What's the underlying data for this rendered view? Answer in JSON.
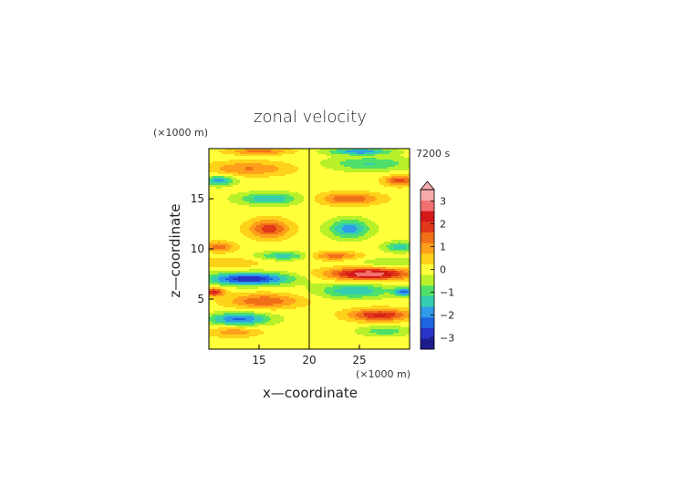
{
  "chart_data": {
    "type": "heatmap",
    "title": "zonal velocity",
    "time_label": "7200 s",
    "xlabel": "x—coordinate",
    "ylabel": "z—coordinate",
    "x_unit": "(×1000 m)",
    "z_unit": "(×1000 m)",
    "xlim": [
      10,
      30
    ],
    "zlim": [
      0,
      20
    ],
    "x_ticks": [
      "15",
      "20",
      "25"
    ],
    "z_ticks": [
      "5",
      "10",
      "15"
    ],
    "colorbar_ticks": [
      "3",
      "2",
      "1",
      "0",
      "−1",
      "−2",
      "−3"
    ],
    "colorbar_range": [
      -3.5,
      3.5
    ],
    "colorbar_extend": "max",
    "colors": [
      "#1c1c8a",
      "#2834c8",
      "#1f63e0",
      "#2f9ae8",
      "#35cdb2",
      "#4fe06a",
      "#b8f02a",
      "#ffff3a",
      "#ffd21a",
      "#ffa01a",
      "#f07018",
      "#e03818",
      "#d41818",
      "#f07070",
      "#f6aaaa"
    ],
    "features": [
      {
        "x": 14.0,
        "z": 7.0,
        "v": -3.0,
        "sx": 4.0,
        "sz": 0.6
      },
      {
        "x": 16.0,
        "z": 12.0,
        "v": 1.9,
        "sx": 2.0,
        "sz": 0.9
      },
      {
        "x": 16.0,
        "z": 15.0,
        "v": -1.6,
        "sx": 3.0,
        "sz": 0.6
      },
      {
        "x": 14.0,
        "z": 18.0,
        "v": 1.2,
        "sx": 4.0,
        "sz": 0.7
      },
      {
        "x": 15.5,
        "z": 4.8,
        "v": 1.6,
        "sx": 3.5,
        "sz": 0.7
      },
      {
        "x": 13.0,
        "z": 3.0,
        "v": -2.2,
        "sx": 3.0,
        "sz": 0.6
      },
      {
        "x": 12.5,
        "z": 1.7,
        "v": 1.0,
        "sx": 2.5,
        "sz": 0.5
      },
      {
        "x": 17.5,
        "z": 9.3,
        "v": -1.4,
        "sx": 2.5,
        "sz": 0.4
      },
      {
        "x": 11.0,
        "z": 10.2,
        "v": 1.5,
        "sx": 1.5,
        "sz": 0.5
      },
      {
        "x": 11.0,
        "z": 16.8,
        "v": -1.8,
        "sx": 1.5,
        "sz": 0.5
      },
      {
        "x": 10.5,
        "z": 5.7,
        "v": 2.2,
        "sx": 1.0,
        "sz": 0.4
      },
      {
        "x": 12.0,
        "z": 8.6,
        "v": 0.7,
        "sx": 3.0,
        "sz": 0.5
      },
      {
        "x": 26.0,
        "z": 7.5,
        "v": 3.0,
        "sx": 4.0,
        "sz": 0.6
      },
      {
        "x": 24.0,
        "z": 12.0,
        "v": -1.9,
        "sx": 2.0,
        "sz": 0.9
      },
      {
        "x": 24.0,
        "z": 15.0,
        "v": 1.6,
        "sx": 3.0,
        "sz": 0.6
      },
      {
        "x": 26.0,
        "z": 18.5,
        "v": -1.2,
        "sx": 4.0,
        "sz": 0.7
      },
      {
        "x": 24.5,
        "z": 5.8,
        "v": -1.6,
        "sx": 3.5,
        "sz": 0.7
      },
      {
        "x": 27.0,
        "z": 3.4,
        "v": 2.2,
        "sx": 3.0,
        "sz": 0.6
      },
      {
        "x": 27.5,
        "z": 1.8,
        "v": -1.0,
        "sx": 2.5,
        "sz": 0.5
      },
      {
        "x": 22.5,
        "z": 9.3,
        "v": 1.4,
        "sx": 2.5,
        "sz": 0.4
      },
      {
        "x": 29.0,
        "z": 10.2,
        "v": -1.5,
        "sx": 1.5,
        "sz": 0.5
      },
      {
        "x": 29.0,
        "z": 16.8,
        "v": 1.8,
        "sx": 1.5,
        "sz": 0.5
      },
      {
        "x": 29.5,
        "z": 5.7,
        "v": -2.2,
        "sx": 1.0,
        "sz": 0.4
      },
      {
        "x": 28.0,
        "z": 8.6,
        "v": -0.7,
        "sx": 3.0,
        "sz": 0.5
      },
      {
        "x": 25.0,
        "z": 19.7,
        "v": -2.0,
        "sx": 3.0,
        "sz": 0.3
      },
      {
        "x": 15.0,
        "z": 19.7,
        "v": 1.4,
        "sx": 3.0,
        "sz": 0.3
      }
    ]
  }
}
